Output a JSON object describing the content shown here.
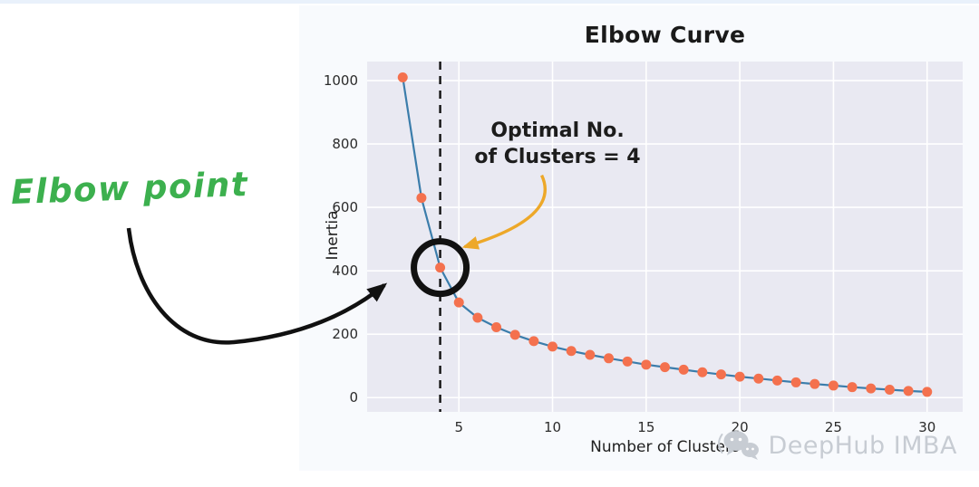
{
  "annotations": {
    "elbow_label": "Elbow point",
    "optimal_line1": "Optimal No.",
    "optimal_line2": "of Clusters = 4"
  },
  "watermark": {
    "text": "DeepHub IMBA",
    "icon": "wechat-chat-bubbles-icon"
  },
  "colors": {
    "line": "#3b7dab",
    "marker": "#f4714e",
    "plot_background": "#e9e9f2",
    "grid": "#ffffff",
    "dashed_line": "#111111",
    "highlight_ring": "#111111",
    "optimal_arrow": "#eda829",
    "elbow_text": "#3cb04e",
    "black_arrow": "#111111",
    "watermark_gray": "#c7ccd3"
  },
  "chart_data": {
    "type": "line",
    "title": "Elbow Curve",
    "xlabel": "Number of Clusters",
    "ylabel": "Inertia",
    "x": [
      2,
      3,
      4,
      5,
      6,
      7,
      8,
      9,
      10,
      11,
      12,
      13,
      14,
      15,
      16,
      17,
      18,
      19,
      20,
      21,
      22,
      23,
      24,
      25,
      26,
      27,
      28,
      29,
      30
    ],
    "y": [
      1010,
      630,
      410,
      300,
      252,
      222,
      198,
      178,
      161,
      147,
      135,
      124,
      114,
      104,
      96,
      88,
      80,
      73,
      66,
      60,
      54,
      48,
      43,
      38,
      33,
      29,
      25,
      21,
      18
    ],
    "xticks": [
      5,
      10,
      15,
      20,
      25,
      30
    ],
    "yticks": [
      0,
      200,
      400,
      600,
      800,
      1000
    ],
    "xlim": [
      0.1,
      31.9
    ],
    "ylim": [
      -45,
      1060
    ],
    "elbow_x": 4,
    "elbow_y": 410,
    "grid": true,
    "legend_position": "none"
  }
}
